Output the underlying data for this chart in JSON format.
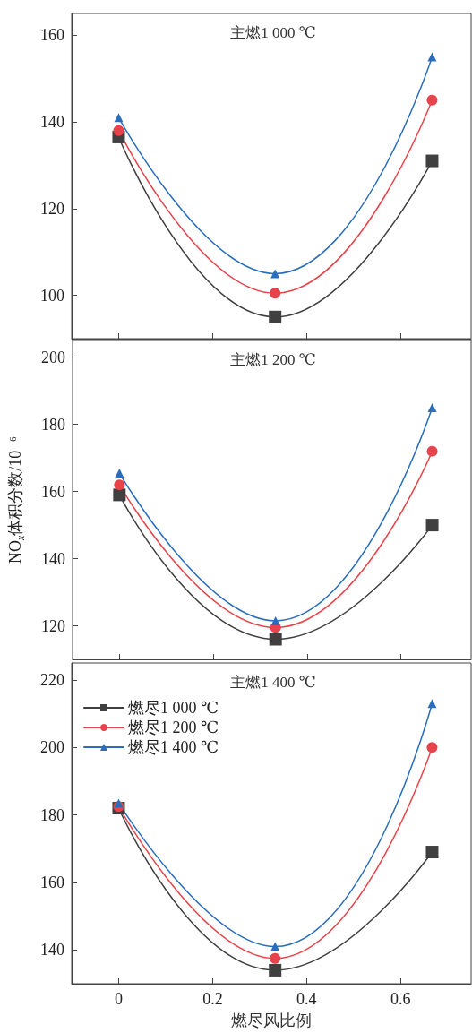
{
  "chart_data": [
    {
      "type": "line",
      "title": "主燃1 000 ℃",
      "x": [
        0,
        0.333,
        0.667
      ],
      "xlim": [
        -0.1,
        0.75
      ],
      "xticks": [
        0,
        0.2,
        0.4,
        0.6
      ],
      "ylim": [
        90,
        165
      ],
      "yticks": [
        100,
        120,
        140,
        160
      ],
      "tick_labels": "y",
      "grid": false,
      "legend": false,
      "line_style": "solid",
      "series": [
        {
          "color": "#404040",
          "marker": "square",
          "values": [
            136.5,
            95,
            131
          ]
        },
        {
          "color": "#e8434a",
          "marker": "circle",
          "values": [
            138,
            100.5,
            145
          ]
        },
        {
          "color": "#2a6ebb",
          "marker": "triangle",
          "values": [
            141,
            105,
            155
          ]
        }
      ]
    },
    {
      "type": "line",
      "title": "主燃1 200 ℃",
      "ylabel": "NO$_{x}$体积分数/10⁻⁶",
      "x": [
        0,
        0.333,
        0.667
      ],
      "xlim": [
        -0.1,
        0.75
      ],
      "xticks": [
        0,
        0.2,
        0.4,
        0.6
      ],
      "ylim": [
        110,
        205
      ],
      "yticks": [
        120,
        140,
        160,
        180,
        200
      ],
      "tick_labels": "y",
      "grid": false,
      "legend": false,
      "line_style": "solid",
      "series": [
        {
          "color": "#404040",
          "marker": "square",
          "values": [
            159,
            116,
            150
          ]
        },
        {
          "color": "#e8434a",
          "marker": "circle",
          "values": [
            162,
            119.5,
            172
          ]
        },
        {
          "color": "#2a6ebb",
          "marker": "triangle",
          "values": [
            165.5,
            121.5,
            185
          ]
        }
      ]
    },
    {
      "type": "line",
      "title": "主燃1 400 ℃",
      "xlabel": "燃尽风比例",
      "x": [
        0,
        0.333,
        0.667
      ],
      "xlim": [
        -0.1,
        0.75
      ],
      "xticks": [
        0,
        0.2,
        0.4,
        0.6
      ],
      "ylim": [
        130,
        225
      ],
      "yticks": [
        140,
        160,
        180,
        200,
        220
      ],
      "grid": false,
      "legend": "top left",
      "line_style": "solid",
      "series": [
        {
          "name": "燃尽1 000 ℃",
          "color": "#404040",
          "marker": "square",
          "values": [
            182,
            134,
            169
          ]
        },
        {
          "name": "燃尽1 200 ℃",
          "color": "#e8434a",
          "marker": "circle",
          "values": [
            182.5,
            137.5,
            200
          ]
        },
        {
          "name": "燃尽1 400 ℃",
          "color": "#2a6ebb",
          "marker": "triangle",
          "values": [
            183.5,
            141,
            213
          ]
        }
      ]
    }
  ]
}
